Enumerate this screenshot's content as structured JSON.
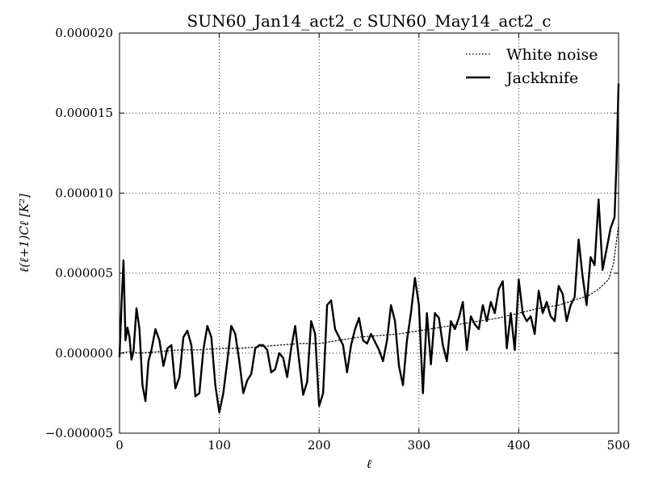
{
  "chart_data": {
    "type": "line",
    "title": "SUN60_Jan14_act2_c SUN60_May14_act2_c",
    "xlabel": "ℓ",
    "ylabel": "ℓ(ℓ+1)Cℓ [K²]",
    "xlim": [
      0,
      500
    ],
    "ylim": [
      -5e-06,
      2e-05
    ],
    "xticks": [
      0,
      100,
      200,
      300,
      400,
      500
    ],
    "xtick_labels": [
      "0",
      "100",
      "200",
      "300",
      "400",
      "500"
    ],
    "yticks": [
      -5e-06,
      0,
      5e-06,
      1e-05,
      1.5e-05,
      2e-05
    ],
    "ytick_labels": [
      "−0.000005",
      "0.000000",
      "0.000005",
      "0.000010",
      "0.000015",
      "0.000020"
    ],
    "grid": true,
    "legend_position": "top-right",
    "legend": [
      "White noise",
      "Jackknife"
    ],
    "series": [
      {
        "name": "White noise",
        "style": "dotted",
        "color": "#000000",
        "x": [
          0,
          10,
          20,
          40,
          60,
          80,
          100,
          120,
          140,
          160,
          180,
          200,
          220,
          240,
          260,
          280,
          300,
          320,
          340,
          360,
          380,
          400,
          420,
          440,
          460,
          470,
          480,
          490,
          495,
          500
        ],
        "y": [
          0.0,
          1e-07,
          0.0,
          1e-07,
          2e-07,
          2e-07,
          3e-07,
          3e-07,
          4e-07,
          5e-07,
          6e-07,
          6e-07,
          8e-07,
          1e-06,
          1.1e-06,
          1.2e-06,
          1.4e-06,
          1.6e-06,
          1.8e-06,
          2e-06,
          2.2e-06,
          2.5e-06,
          2.8e-06,
          3e-06,
          3.4e-06,
          3.6e-06,
          4e-06,
          4.6e-06,
          5.6e-06,
          8e-06
        ]
      },
      {
        "name": "Jackknife",
        "style": "solid",
        "color": "#000000",
        "x": [
          0,
          2,
          4,
          6,
          8,
          10,
          12,
          14,
          17,
          20,
          23,
          26,
          29,
          32,
          36,
          40,
          44,
          48,
          52,
          56,
          60,
          64,
          68,
          72,
          76,
          80,
          84,
          88,
          92,
          96,
          100,
          104,
          108,
          112,
          116,
          120,
          124,
          128,
          132,
          136,
          140,
          144,
          148,
          152,
          156,
          160,
          164,
          168,
          172,
          176,
          180,
          184,
          188,
          192,
          196,
          200,
          204,
          208,
          212,
          216,
          220,
          224,
          228,
          232,
          236,
          240,
          244,
          248,
          252,
          256,
          260,
          264,
          268,
          272,
          276,
          280,
          284,
          288,
          292,
          296,
          300,
          304,
          308,
          312,
          316,
          320,
          324,
          328,
          332,
          336,
          340,
          344,
          348,
          352,
          356,
          360,
          364,
          368,
          372,
          376,
          380,
          384,
          388,
          392,
          396,
          400,
          404,
          408,
          412,
          416,
          420,
          424,
          428,
          432,
          436,
          440,
          444,
          448,
          452,
          456,
          460,
          464,
          468,
          472,
          476,
          480,
          484,
          488,
          492,
          496,
          498,
          500
        ],
        "y": [
          -2e-07,
          3e-06,
          5.8e-06,
          8e-07,
          1.6e-06,
          1e-06,
          -4e-07,
          1e-07,
          2.8e-06,
          1.5e-06,
          -2e-06,
          -3e-06,
          -5e-07,
          2e-07,
          1.5e-06,
          8e-07,
          -8e-07,
          3e-07,
          5e-07,
          -2.2e-06,
          -1.5e-06,
          1e-06,
          1.4e-06,
          5e-07,
          -2.7e-06,
          -2.5e-06,
          2e-07,
          1.7e-06,
          1e-06,
          -2e-06,
          -3.7e-06,
          -2.5e-06,
          -5e-07,
          1.7e-06,
          1.2e-06,
          -5e-07,
          -2.5e-06,
          -1.7e-06,
          -1.3e-06,
          3e-07,
          5e-07,
          5e-07,
          2e-07,
          -1.2e-06,
          -1e-06,
          0.0,
          -3e-07,
          -1.5e-06,
          3e-07,
          1.7e-06,
          -5e-07,
          -2.6e-06,
          -1.8e-06,
          2e-06,
          1.2e-06,
          -3.3e-06,
          -2.5e-06,
          3e-06,
          3.3e-06,
          1.5e-06,
          1e-06,
          5e-07,
          -1.2e-06,
          5e-07,
          1.5e-06,
          2.2e-06,
          8e-07,
          6e-07,
          1.2e-06,
          7e-07,
          2e-07,
          -5e-07,
          8e-07,
          3e-06,
          2e-06,
          -8e-07,
          -2e-06,
          8e-07,
          2.5e-06,
          4.7e-06,
          3e-06,
          -2.5e-06,
          2.5e-06,
          -7e-07,
          2.5e-06,
          2.2e-06,
          5e-07,
          -5e-07,
          2e-06,
          1.5e-06,
          2.2e-06,
          3.2e-06,
          2e-07,
          2.3e-06,
          1.8e-06,
          1.5e-06,
          3e-06,
          2e-06,
          3.2e-06,
          2.5e-06,
          4e-06,
          4.5e-06,
          3e-07,
          2.5e-06,
          2e-07,
          4.6e-06,
          2.5e-06,
          2e-06,
          2.3e-06,
          1.2e-06,
          3.9e-06,
          2.5e-06,
          3.2e-06,
          2.3e-06,
          2e-06,
          4.2e-06,
          3.7e-06,
          2e-06,
          3e-06,
          3.5e-06,
          7.1e-06,
          4.8e-06,
          3e-06,
          6e-06,
          5.5e-06,
          9.6e-06,
          5.2e-06,
          6.5e-06,
          7.8e-06,
          8.5e-06,
          1.2e-05,
          1.68e-05
        ]
      }
    ]
  }
}
